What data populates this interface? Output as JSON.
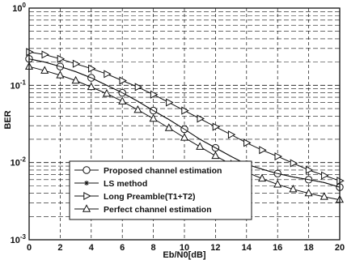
{
  "chart_data": {
    "type": "line",
    "xlabel": "Eb/N0[dB]",
    "ylabel": "BER",
    "xlim": [
      0,
      20
    ],
    "ylim": [
      0.001,
      1
    ],
    "yscale": "log",
    "grid": true,
    "grid_style": "dashed",
    "legend_position": "bottom-left",
    "x_ticks": [
      "0",
      "2",
      "4",
      "6",
      "8",
      "10",
      "12",
      "14",
      "16",
      "18",
      "20"
    ],
    "y_ticks": [
      {
        "base": "10",
        "exp": "0",
        "value": 1
      },
      {
        "base": "10",
        "exp": "-1",
        "value": 0.1
      },
      {
        "base": "10",
        "exp": "-2",
        "value": 0.01
      },
      {
        "base": "10",
        "exp": "-3",
        "value": 0.001
      }
    ],
    "x": [
      0,
      1,
      2,
      3,
      4,
      5,
      6,
      7,
      8,
      9,
      10,
      11,
      12,
      13,
      14,
      15,
      16,
      17,
      18,
      19,
      20
    ],
    "series": [
      {
        "name": "Proposed channel estimation",
        "marker": "circle",
        "marker_every": 2,
        "values": [
          0.22,
          0.2,
          0.175,
          0.15,
          0.125,
          0.1,
          0.08,
          0.062,
          0.047,
          0.036,
          0.027,
          0.02,
          0.0155,
          0.012,
          0.0095,
          0.0082,
          0.0072,
          0.0065,
          0.006,
          0.0055,
          0.0048
        ]
      },
      {
        "name": "LS method",
        "marker": "star",
        "marker_every": 0,
        "values": [
          0.22,
          0.2,
          0.175,
          0.15,
          0.125,
          0.1,
          0.08,
          0.062,
          0.047,
          0.036,
          0.027,
          0.02,
          0.0155,
          0.012,
          0.0095,
          0.0082,
          0.0072,
          0.0065,
          0.006,
          0.0055,
          0.0048
        ]
      },
      {
        "name": "Long Preamble(T1+T2)",
        "marker": "triangle-right",
        "marker_every": 1,
        "values": [
          0.27,
          0.25,
          0.22,
          0.19,
          0.165,
          0.14,
          0.115,
          0.095,
          0.076,
          0.06,
          0.047,
          0.037,
          0.029,
          0.023,
          0.018,
          0.0145,
          0.012,
          0.0098,
          0.008,
          0.0068,
          0.0058
        ]
      },
      {
        "name": "Perfect channel estimation",
        "marker": "triangle-up",
        "marker_every": 1,
        "values": [
          0.175,
          0.155,
          0.135,
          0.115,
          0.095,
          0.078,
          0.062,
          0.048,
          0.037,
          0.028,
          0.021,
          0.016,
          0.0122,
          0.0095,
          0.0075,
          0.0062,
          0.0052,
          0.0045,
          0.004,
          0.0036,
          0.0033
        ]
      }
    ]
  },
  "colors": {
    "line": "#111111",
    "grid": "#111111",
    "background": "#ffffff"
  }
}
